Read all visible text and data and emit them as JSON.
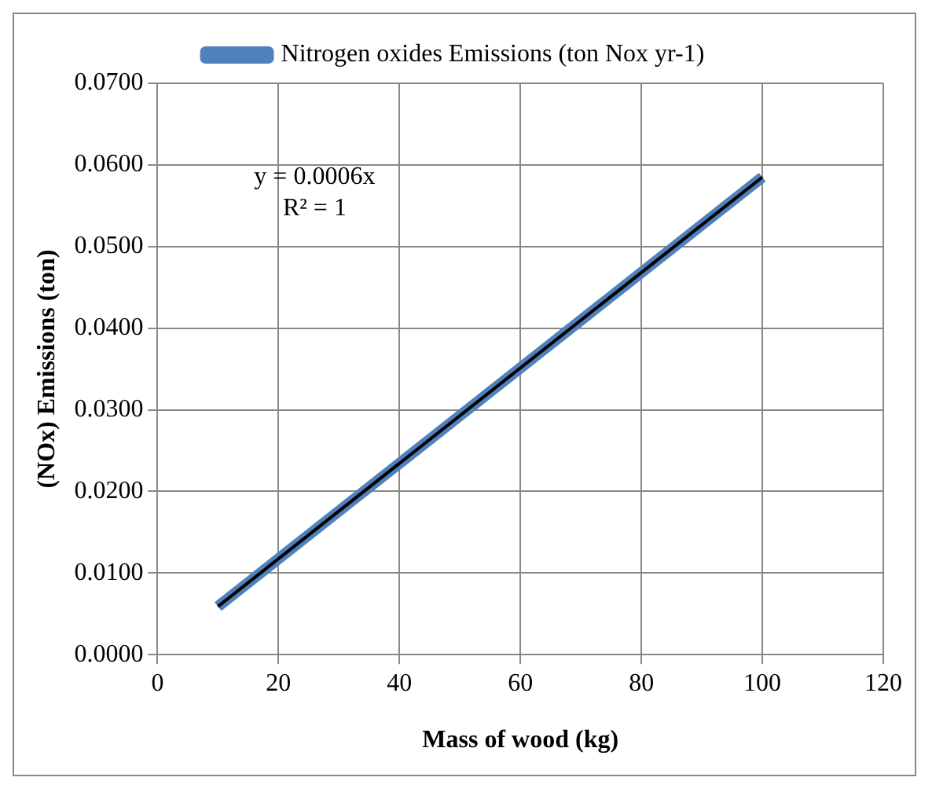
{
  "chart_data": {
    "type": "line",
    "xlabel": "Mass of wood (kg)",
    "ylabel": "(NOx) Emissions (ton)",
    "x": [
      10,
      100
    ],
    "series": [
      {
        "name": "Nitrogen oxides Emissions (ton Nox yr-1)",
        "color": "#4f81bd",
        "values": [
          0.0059,
          0.0585
        ]
      },
      {
        "type": "line",
        "color": "#000000",
        "values": [
          0.0059,
          0.0585
        ]
      }
    ],
    "xlim": [
      0,
      120
    ],
    "xticks": [
      0,
      20,
      40,
      60,
      80,
      100,
      120
    ],
    "ylim": [
      0,
      0.07
    ],
    "yticks": [
      {
        "value": 0,
        "label": "0.0000"
      },
      {
        "value": 0.01,
        "label": "0.0100"
      },
      {
        "value": 0.02,
        "label": "0.0200"
      },
      {
        "value": 0.03,
        "label": "0.0300"
      },
      {
        "value": 0.04,
        "label": "0.0400"
      },
      {
        "value": 0.05,
        "label": "0.0500"
      },
      {
        "value": 0.06,
        "label": "0.0600"
      },
      {
        "value": 0.07,
        "label": "0.0700"
      }
    ],
    "grid": true,
    "legend": "top",
    "marker": "none",
    "line_style": "solid",
    "annotations": [
      "y = 0.0006x",
      "R² = 1"
    ]
  }
}
